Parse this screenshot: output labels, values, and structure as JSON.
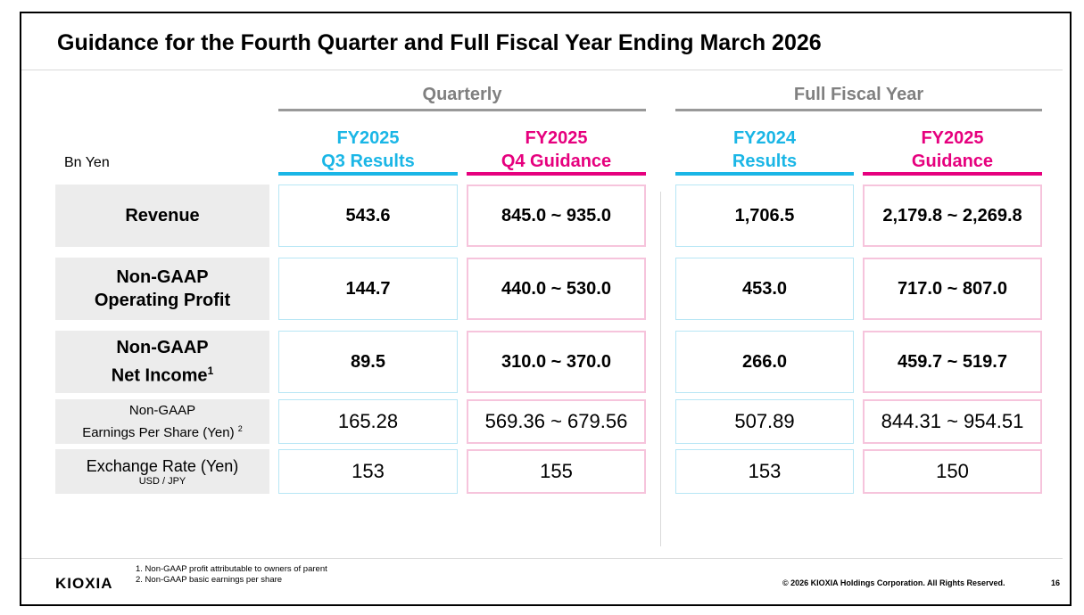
{
  "title": "Guidance for the Fourth Quarter and Full Fiscal Year Ending March 2026",
  "groups": {
    "quarterly": "Quarterly",
    "full_year": "Full Fiscal Year"
  },
  "unit": "Bn Yen",
  "columns": [
    {
      "line1": "FY2025",
      "line2": "Q3 Results",
      "color": "#1ab6e6"
    },
    {
      "line1": "FY2025",
      "line2": "Q4 Guidance",
      "color": "#e6007e"
    },
    {
      "line1": "FY2024",
      "line2": "Results",
      "color": "#1ab6e6"
    },
    {
      "line1": "FY2025",
      "line2": "Guidance",
      "color": "#e6007e"
    }
  ],
  "rows": [
    {
      "label1": "Revenue",
      "values": [
        "543.6",
        "845.0 ~ 935.0",
        "1,706.5",
        "2,179.8 ~ 2,269.8"
      ]
    },
    {
      "label1": "Non-GAAP",
      "label2": "Operating Profit",
      "values": [
        "144.7",
        "440.0 ~ 530.0",
        "453.0",
        "717.0 ~ 807.0"
      ]
    },
    {
      "label1": "Non-GAAP",
      "label2": "Net Income",
      "note": "1",
      "values": [
        "89.5",
        "310.0 ~ 370.0",
        "266.0",
        "459.7 ~ 519.7"
      ]
    },
    {
      "label1": "Non-GAAP",
      "label2": "Earnings Per Share (Yen)",
      "note": "2",
      "values": [
        "165.28",
        "569.36 ~ 679.56",
        "507.89",
        "844.31 ~ 954.51"
      ]
    },
    {
      "label1": "Exchange Rate (Yen)",
      "label2": "USD / JPY",
      "values": [
        "153",
        "155",
        "153",
        "150"
      ]
    }
  ],
  "footnotes": [
    "1. Non-GAAP profit attributable to owners of parent",
    "2. Non-GAAP basic earnings per share"
  ],
  "logo": "KIOXIA",
  "copyright": "© 2026 KIOXIA Holdings Corporation. All Rights Reserved.",
  "page_number": "16"
}
